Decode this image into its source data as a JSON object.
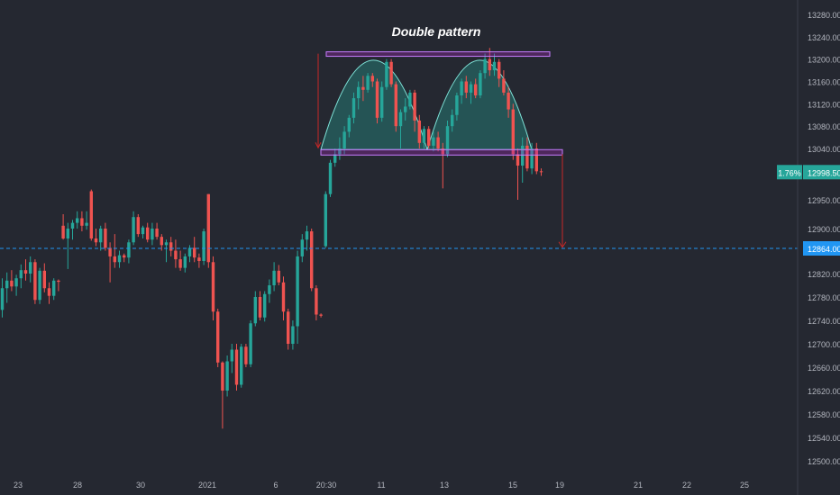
{
  "chart_data": {
    "type": "candlestick",
    "title": "Double pattern",
    "y_axis": {
      "ticks": [
        13280,
        13240,
        13200,
        13160,
        13120,
        13080,
        13040,
        12950,
        12900,
        12820,
        12780,
        12740,
        12700,
        12660,
        12620,
        12580,
        12540,
        12500
      ],
      "tick_labels": [
        "13280.00",
        "13240.00",
        "13200.00",
        "13160.00",
        "13120.00",
        "13080.00",
        "13040.00",
        "12950.00",
        "12900.00",
        "12820.00",
        "12780.00",
        "12740.00",
        "12700.00",
        "12660.00",
        "12620.00",
        "12580.00",
        "12540.00",
        "12500.00"
      ],
      "range": [
        12480,
        13300
      ],
      "position": "right"
    },
    "x_axis": {
      "tick_labels": [
        "23",
        "28",
        "30",
        "2021",
        "6",
        "20:30",
        "11",
        "13",
        "15",
        "19",
        "21",
        "22",
        "25"
      ]
    },
    "last_price": {
      "value": 12998.5,
      "label": "12998.50",
      "change_label": "1.76%",
      "color": "#26a69a"
    },
    "crosshair_price": {
      "value": 12864,
      "label": "12864.00",
      "color": "#2196f3"
    },
    "colors": {
      "up": "#26a69a",
      "down": "#ef5350",
      "pattern_fill": "#26a69a",
      "zone": "#9c27b0",
      "arrow": "#c62828",
      "axis_text": "#b2b5be"
    },
    "grid": false,
    "annotations": {
      "double_top_arcs": 2,
      "resistance_zone": [
        13205,
        13213
      ],
      "support_zone": [
        13030,
        13038
      ],
      "projection_target": 12866
    },
    "candles": [
      {
        "o": 12758,
        "h": 12812,
        "l": 12745,
        "c": 12795
      },
      {
        "o": 12795,
        "h": 12822,
        "l": 12770,
        "c": 12808
      },
      {
        "o": 12808,
        "h": 12826,
        "l": 12790,
        "c": 12798
      },
      {
        "o": 12798,
        "h": 12818,
        "l": 12782,
        "c": 12812
      },
      {
        "o": 12812,
        "h": 12836,
        "l": 12795,
        "c": 12826
      },
      {
        "o": 12826,
        "h": 12845,
        "l": 12808,
        "c": 12820
      },
      {
        "o": 12820,
        "h": 12850,
        "l": 12805,
        "c": 12840
      },
      {
        "o": 12840,
        "h": 12845,
        "l": 12768,
        "c": 12775
      },
      {
        "o": 12775,
        "h": 12830,
        "l": 12768,
        "c": 12825
      },
      {
        "o": 12825,
        "h": 12838,
        "l": 12788,
        "c": 12795
      },
      {
        "o": 12795,
        "h": 12805,
        "l": 12768,
        "c": 12782
      },
      {
        "o": 12782,
        "h": 12812,
        "l": 12775,
        "c": 12808
      },
      {
        "o": 12808,
        "h": 12810,
        "l": 12790,
        "c": 12806
      },
      {
        "o": 12905,
        "h": 12925,
        "l": 12880,
        "c": 12882
      },
      {
        "o": 12882,
        "h": 12910,
        "l": 12828,
        "c": 12900
      },
      {
        "o": 12900,
        "h": 12915,
        "l": 12880,
        "c": 12910
      },
      {
        "o": 12910,
        "h": 12930,
        "l": 12900,
        "c": 12918
      },
      {
        "o": 12918,
        "h": 12930,
        "l": 12895,
        "c": 12905
      },
      {
        "o": 12905,
        "h": 12930,
        "l": 12898,
        "c": 12910
      },
      {
        "o": 12965,
        "h": 12968,
        "l": 12878,
        "c": 12882
      },
      {
        "o": 12882,
        "h": 12900,
        "l": 12868,
        "c": 12875
      },
      {
        "o": 12875,
        "h": 12905,
        "l": 12860,
        "c": 12900
      },
      {
        "o": 12900,
        "h": 12910,
        "l": 12860,
        "c": 12865
      },
      {
        "o": 12865,
        "h": 12875,
        "l": 12805,
        "c": 12850
      },
      {
        "o": 12850,
        "h": 12890,
        "l": 12830,
        "c": 12840
      },
      {
        "o": 12840,
        "h": 12860,
        "l": 12830,
        "c": 12852
      },
      {
        "o": 12852,
        "h": 12855,
        "l": 12840,
        "c": 12848
      },
      {
        "o": 12848,
        "h": 12880,
        "l": 12838,
        "c": 12875
      },
      {
        "o": 12875,
        "h": 12930,
        "l": 12870,
        "c": 12920
      },
      {
        "o": 12920,
        "h": 12925,
        "l": 12885,
        "c": 12890
      },
      {
        "o": 12890,
        "h": 12905,
        "l": 12882,
        "c": 12902
      },
      {
        "o": 12902,
        "h": 12910,
        "l": 12875,
        "c": 12880
      },
      {
        "o": 12880,
        "h": 12910,
        "l": 12870,
        "c": 12900
      },
      {
        "o": 12900,
        "h": 12910,
        "l": 12880,
        "c": 12885
      },
      {
        "o": 12885,
        "h": 12890,
        "l": 12860,
        "c": 12870
      },
      {
        "o": 12870,
        "h": 12880,
        "l": 12840,
        "c": 12875
      },
      {
        "o": 12875,
        "h": 12885,
        "l": 12850,
        "c": 12860
      },
      {
        "o": 12860,
        "h": 12880,
        "l": 12830,
        "c": 12845
      },
      {
        "o": 12845,
        "h": 12860,
        "l": 12825,
        "c": 12830
      },
      {
        "o": 12830,
        "h": 12855,
        "l": 12822,
        "c": 12850
      },
      {
        "o": 12850,
        "h": 12870,
        "l": 12840,
        "c": 12865
      },
      {
        "o": 12865,
        "h": 12885,
        "l": 12840,
        "c": 12848
      },
      {
        "o": 12848,
        "h": 12855,
        "l": 12830,
        "c": 12842
      },
      {
        "o": 12842,
        "h": 12900,
        "l": 12835,
        "c": 12895
      },
      {
        "o": 12960,
        "h": 12960,
        "l": 12830,
        "c": 12840
      },
      {
        "o": 12840,
        "h": 12850,
        "l": 12740,
        "c": 12755
      },
      {
        "o": 12755,
        "h": 12760,
        "l": 12660,
        "c": 12668
      },
      {
        "o": 12668,
        "h": 12670,
        "l": 12555,
        "c": 12620
      },
      {
        "o": 12620,
        "h": 12680,
        "l": 12610,
        "c": 12670
      },
      {
        "o": 12670,
        "h": 12700,
        "l": 12650,
        "c": 12690
      },
      {
        "o": 12690,
        "h": 12700,
        "l": 12620,
        "c": 12630
      },
      {
        "o": 12630,
        "h": 12700,
        "l": 12625,
        "c": 12695
      },
      {
        "o": 12695,
        "h": 12700,
        "l": 12660,
        "c": 12665
      },
      {
        "o": 12665,
        "h": 12740,
        "l": 12660,
        "c": 12735
      },
      {
        "o": 12735,
        "h": 12790,
        "l": 12730,
        "c": 12780
      },
      {
        "o": 12780,
        "h": 12790,
        "l": 12740,
        "c": 12745
      },
      {
        "o": 12745,
        "h": 12790,
        "l": 12738,
        "c": 12785
      },
      {
        "o": 12785,
        "h": 12810,
        "l": 12770,
        "c": 12800
      },
      {
        "o": 12800,
        "h": 12840,
        "l": 12790,
        "c": 12825
      },
      {
        "o": 12825,
        "h": 12835,
        "l": 12800,
        "c": 12805
      },
      {
        "o": 12805,
        "h": 12815,
        "l": 12740,
        "c": 12755
      },
      {
        "o": 12755,
        "h": 12760,
        "l": 12690,
        "c": 12700
      },
      {
        "o": 12700,
        "h": 12740,
        "l": 12690,
        "c": 12730
      },
      {
        "o": 12730,
        "h": 12860,
        "l": 12700,
        "c": 12850
      },
      {
        "o": 12850,
        "h": 12890,
        "l": 12840,
        "c": 12880
      },
      {
        "o": 12880,
        "h": 12905,
        "l": 12860,
        "c": 12895
      },
      {
        "o": 12895,
        "h": 12900,
        "l": 12790,
        "c": 12795
      },
      {
        "o": 12795,
        "h": 12800,
        "l": 12740,
        "c": 12750
      },
      {
        "o": 12750,
        "h": 12752,
        "l": 12745,
        "c": 12748
      },
      {
        "o": 12868,
        "h": 12965,
        "l": 12865,
        "c": 12960
      },
      {
        "o": 12960,
        "h": 13020,
        "l": 12955,
        "c": 13015
      },
      {
        "o": 13015,
        "h": 13040,
        "l": 13008,
        "c": 13030
      },
      {
        "o": 13030,
        "h": 13060,
        "l": 13020,
        "c": 13040
      },
      {
        "o": 13040,
        "h": 13080,
        "l": 13030,
        "c": 13070
      },
      {
        "o": 13070,
        "h": 13100,
        "l": 13060,
        "c": 13095
      },
      {
        "o": 13095,
        "h": 13140,
        "l": 13085,
        "c": 13130
      },
      {
        "o": 13130,
        "h": 13160,
        "l": 13110,
        "c": 13150
      },
      {
        "o": 13150,
        "h": 13170,
        "l": 13125,
        "c": 13145
      },
      {
        "o": 13145,
        "h": 13175,
        "l": 13140,
        "c": 13170
      },
      {
        "o": 13170,
        "h": 13175,
        "l": 13150,
        "c": 13160
      },
      {
        "o": 13160,
        "h": 13165,
        "l": 13085,
        "c": 13095
      },
      {
        "o": 13095,
        "h": 13160,
        "l": 13088,
        "c": 13150
      },
      {
        "o": 13150,
        "h": 13200,
        "l": 13145,
        "c": 13195
      },
      {
        "o": 13195,
        "h": 13200,
        "l": 13150,
        "c": 13155
      },
      {
        "o": 13155,
        "h": 13160,
        "l": 13070,
        "c": 13080
      },
      {
        "o": 13080,
        "h": 13110,
        "l": 13040,
        "c": 13105
      },
      {
        "o": 13105,
        "h": 13130,
        "l": 13090,
        "c": 13115
      },
      {
        "o": 13115,
        "h": 13145,
        "l": 13110,
        "c": 13140
      },
      {
        "o": 13140,
        "h": 13145,
        "l": 13070,
        "c": 13090
      },
      {
        "o": 13090,
        "h": 13100,
        "l": 13040,
        "c": 13050
      },
      {
        "o": 13050,
        "h": 13080,
        "l": 13040,
        "c": 13075
      },
      {
        "o": 13075,
        "h": 13080,
        "l": 13040,
        "c": 13045
      },
      {
        "o": 13045,
        "h": 13070,
        "l": 13035,
        "c": 13060
      },
      {
        "o": 13060,
        "h": 13070,
        "l": 13035,
        "c": 13040
      },
      {
        "o": 13040,
        "h": 13050,
        "l": 12970,
        "c": 13030
      },
      {
        "o": 13030,
        "h": 13090,
        "l": 13025,
        "c": 13080
      },
      {
        "o": 13080,
        "h": 13110,
        "l": 13070,
        "c": 13100
      },
      {
        "o": 13100,
        "h": 13140,
        "l": 13090,
        "c": 13135
      },
      {
        "o": 13135,
        "h": 13165,
        "l": 13120,
        "c": 13160
      },
      {
        "o": 13160,
        "h": 13170,
        "l": 13130,
        "c": 13140
      },
      {
        "o": 13140,
        "h": 13160,
        "l": 13120,
        "c": 13155
      },
      {
        "o": 13155,
        "h": 13165,
        "l": 13130,
        "c": 13135
      },
      {
        "o": 13135,
        "h": 13180,
        "l": 13130,
        "c": 13175
      },
      {
        "o": 13175,
        "h": 13210,
        "l": 13165,
        "c": 13200
      },
      {
        "o": 13200,
        "h": 13220,
        "l": 13170,
        "c": 13180
      },
      {
        "o": 13180,
        "h": 13210,
        "l": 13170,
        "c": 13195
      },
      {
        "o": 13195,
        "h": 13200,
        "l": 13150,
        "c": 13165
      },
      {
        "o": 13165,
        "h": 13180,
        "l": 13135,
        "c": 13140
      },
      {
        "o": 13140,
        "h": 13150,
        "l": 13095,
        "c": 13110
      },
      {
        "o": 13110,
        "h": 13120,
        "l": 13020,
        "c": 13030
      },
      {
        "o": 13030,
        "h": 13040,
        "l": 12950,
        "c": 13010
      },
      {
        "o": 13010,
        "h": 13060,
        "l": 12980,
        "c": 13045
      },
      {
        "o": 13045,
        "h": 13060,
        "l": 13000,
        "c": 13005
      },
      {
        "o": 13005,
        "h": 13050,
        "l": 12995,
        "c": 13040
      },
      {
        "o": 13040,
        "h": 13050,
        "l": 12995,
        "c": 13000
      },
      {
        "o": 13000,
        "h": 13005,
        "l": 12992,
        "c": 12998.5
      }
    ]
  }
}
